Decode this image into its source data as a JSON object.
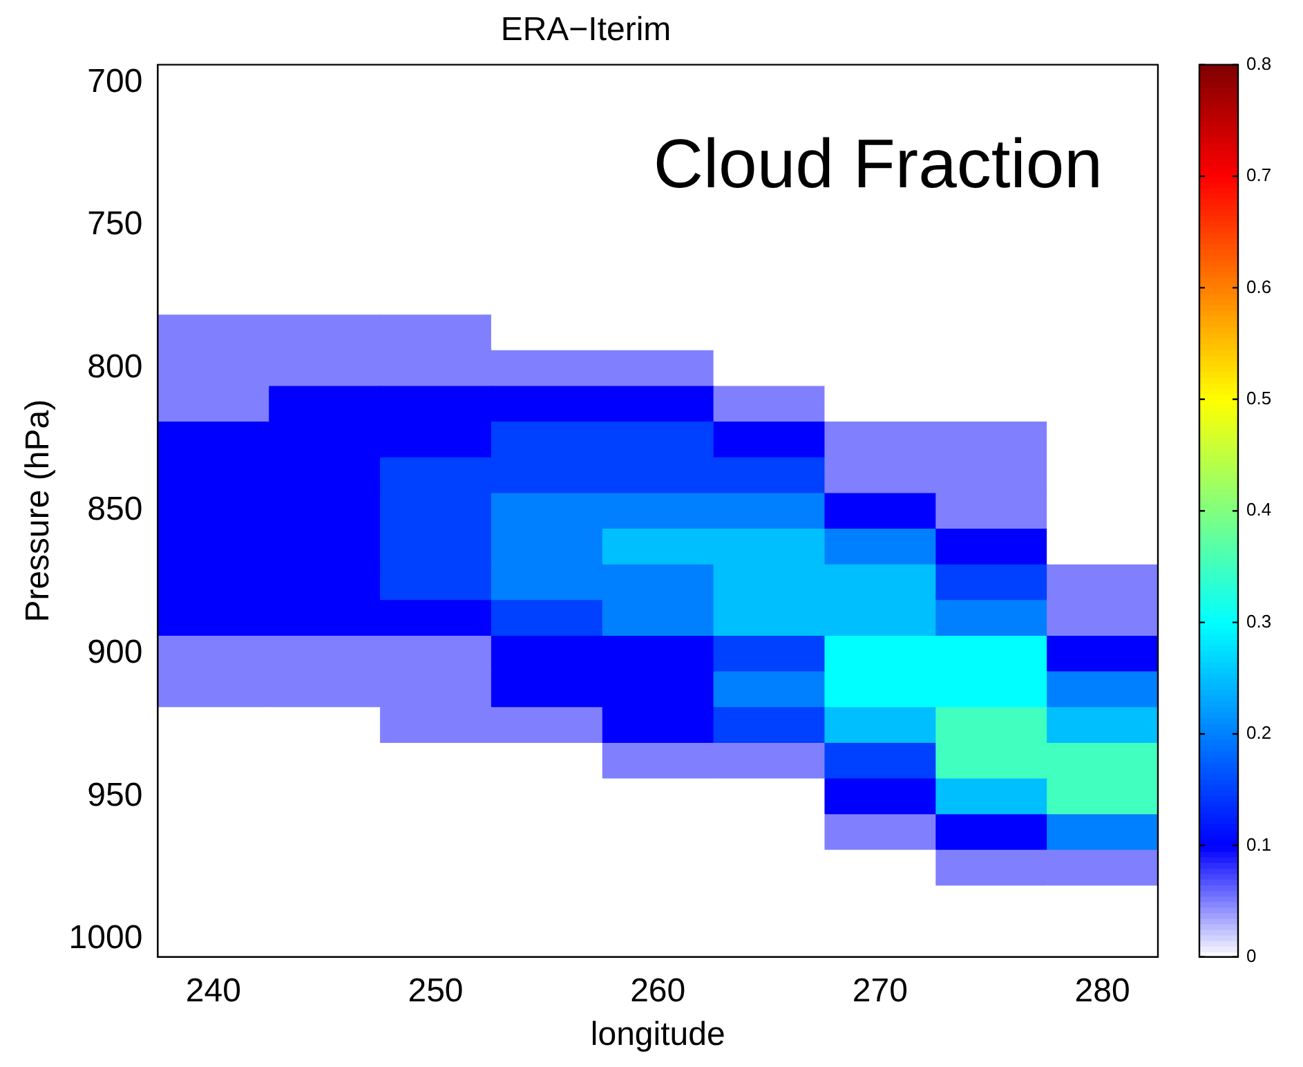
{
  "chart_data": {
    "type": "heatmap",
    "title": "ERA−Iterim",
    "xlabel": "longitude",
    "ylabel": "Pressure (hPa)",
    "annotations": [
      "Cloud Fraction"
    ],
    "categories": [
      "240",
      null,
      "250",
      null,
      "260",
      null,
      "270",
      null,
      "280"
    ],
    "y_categories": [
      "700",
      null,
      null,
      null,
      "750",
      null,
      null,
      null,
      "800",
      null,
      null,
      null,
      "850",
      null,
      null,
      null,
      "900",
      null,
      null,
      null,
      "950",
      null,
      null,
      null,
      "1000"
    ],
    "cells": [
      [
        0,
        0,
        0,
        0,
        0,
        0,
        0,
        0,
        0
      ],
      [
        0,
        0,
        0,
        0,
        0,
        0,
        0,
        0,
        0
      ],
      [
        0,
        0,
        0,
        0,
        0,
        0,
        0,
        0,
        0
      ],
      [
        0,
        0,
        0,
        0,
        0,
        0,
        0,
        0,
        0
      ],
      [
        0,
        0,
        0,
        0,
        0,
        0,
        0,
        0,
        0
      ],
      [
        0,
        0,
        0,
        0,
        0,
        0,
        0,
        0,
        0
      ],
      [
        0,
        0,
        0,
        0,
        0,
        0,
        0,
        0,
        0
      ],
      [
        0.05,
        0.05,
        0.05,
        0,
        0,
        0,
        0,
        0,
        0
      ],
      [
        0.05,
        0.05,
        0.05,
        0.05,
        0.05,
        0,
        0,
        0,
        0
      ],
      [
        0.05,
        0.1,
        0.1,
        0.1,
        0.1,
        0.05,
        0,
        0,
        0
      ],
      [
        0.1,
        0.1,
        0.1,
        0.15,
        0.15,
        0.1,
        0.05,
        0.05,
        0
      ],
      [
        0.1,
        0.1,
        0.15,
        0.15,
        0.15,
        0.15,
        0.05,
        0.05,
        0
      ],
      [
        0.1,
        0.1,
        0.15,
        0.2,
        0.2,
        0.2,
        0.1,
        0.05,
        0
      ],
      [
        0.1,
        0.1,
        0.15,
        0.2,
        0.25,
        0.25,
        0.2,
        0.1,
        0
      ],
      [
        0.1,
        0.1,
        0.15,
        0.2,
        0.2,
        0.25,
        0.25,
        0.15,
        0.05
      ],
      [
        0.1,
        0.1,
        0.1,
        0.15,
        0.2,
        0.25,
        0.25,
        0.2,
        0.05
      ],
      [
        0.05,
        0.05,
        0.05,
        0.1,
        0.1,
        0.15,
        0.3,
        0.3,
        0.1
      ],
      [
        0.05,
        0.05,
        0.05,
        0.1,
        0.1,
        0.2,
        0.3,
        0.3,
        0.2
      ],
      [
        0,
        0,
        0.05,
        0.05,
        0.1,
        0.15,
        0.25,
        0.35,
        0.25
      ],
      [
        0,
        0,
        0,
        0,
        0.05,
        0.05,
        0.15,
        0.35,
        0.35
      ],
      [
        0,
        0,
        0,
        0,
        0,
        0,
        0.1,
        0.25,
        0.35
      ],
      [
        0,
        0,
        0,
        0,
        0,
        0,
        0.05,
        0.1,
        0.2
      ],
      [
        0,
        0,
        0,
        0,
        0,
        0,
        0,
        0.05,
        0.05
      ],
      [
        0,
        0,
        0,
        0,
        0,
        0,
        0,
        0,
        0
      ],
      [
        0,
        0,
        0,
        0,
        0,
        0,
        0,
        0,
        0
      ]
    ],
    "clim": [
      0,
      0.8
    ],
    "cticks": [
      0,
      0.1,
      0.2,
      0.3,
      0.4,
      0.5,
      0.6,
      0.7,
      0.8
    ]
  }
}
